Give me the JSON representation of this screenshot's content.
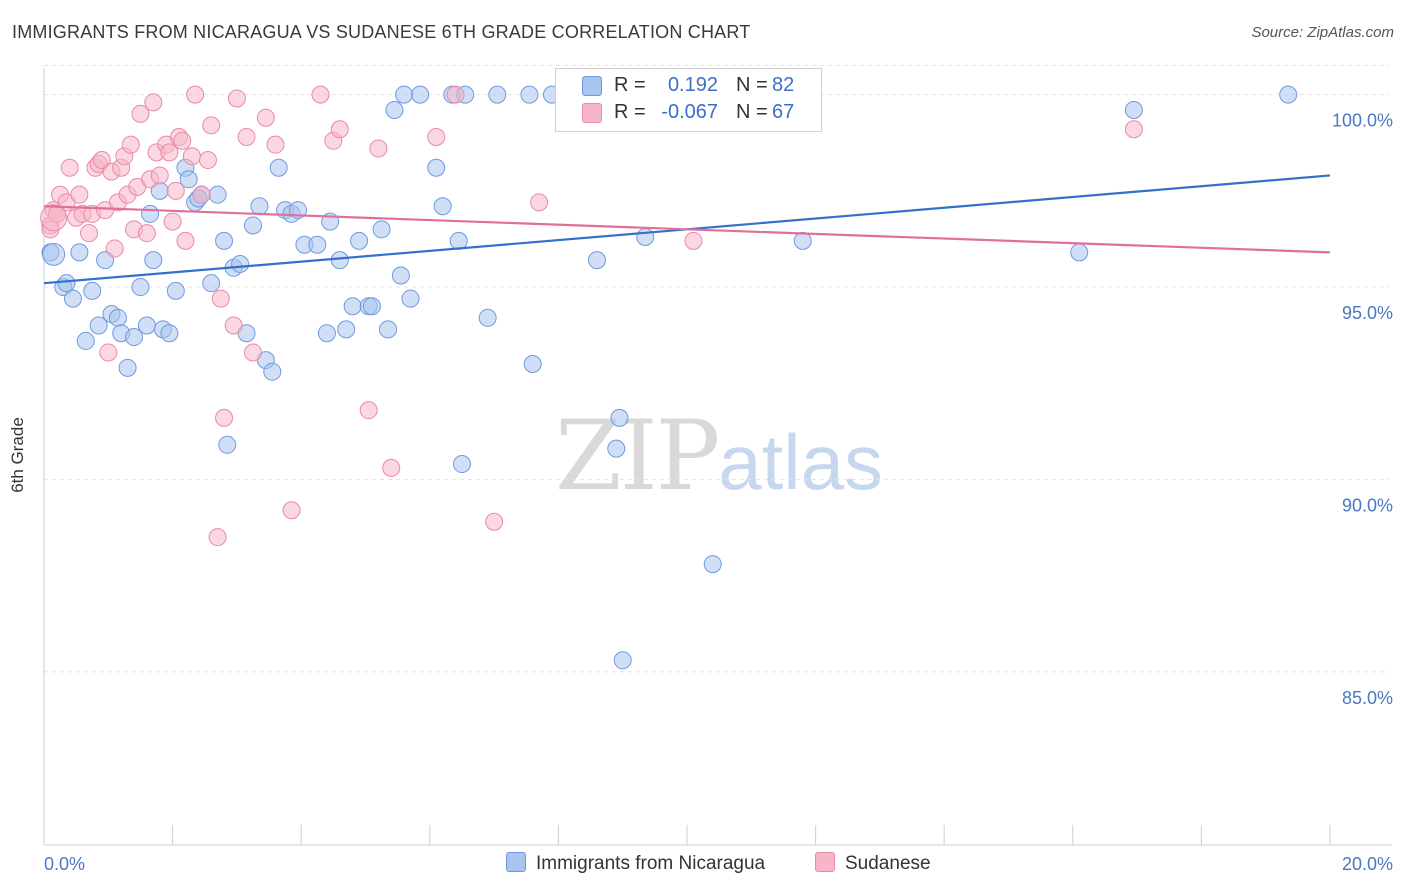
{
  "title": "IMMIGRANTS FROM NICARAGUA VS SUDANESE 6TH GRADE CORRELATION CHART",
  "source": "Source: ZipAtlas.com",
  "watermark": {
    "zip": "ZIP",
    "atlas": "atlas"
  },
  "legend": {
    "rows": [
      {
        "r_label": "R =",
        "r_value": "0.192",
        "n_label": "N =",
        "n_value": "82",
        "color": "#a9c4ee",
        "border": "#6f9ae0"
      },
      {
        "r_label": "R =",
        "r_value": "-0.067",
        "n_label": "N =",
        "n_value": "67",
        "color": "#f6b6c8",
        "border": "#e98aa7"
      }
    ]
  },
  "chart_data": {
    "type": "scatter",
    "title": "IMMIGRANTS FROM NICARAGUA VS SUDANESE 6TH GRADE CORRELATION CHART",
    "xlabel": "",
    "ylabel": "6th Grade",
    "xlim": [
      0,
      20
    ],
    "ylim": [
      80.5,
      100.9
    ],
    "x_tick_labels": [
      "0.0%",
      "20.0%"
    ],
    "y_ticks": [
      85,
      90,
      95,
      100
    ],
    "y_tick_labels": [
      "85.0%",
      "90.0%",
      "95.0%",
      "100.0%"
    ],
    "grid": true,
    "series": [
      {
        "name": "Immigrants from Nicaragua",
        "color": "#a9c4ee",
        "stroke": "#6f9ae0",
        "trend_color": "#3370cc",
        "trend": {
          "x": [
            0,
            20
          ],
          "y": [
            95.1,
            97.9
          ]
        },
        "points": [
          [
            0.1,
            95.9
          ],
          [
            0.3,
            95.0
          ],
          [
            0.35,
            95.1
          ],
          [
            0.45,
            94.7
          ],
          [
            0.55,
            95.9
          ],
          [
            0.65,
            93.6
          ],
          [
            0.75,
            94.9
          ],
          [
            0.85,
            94.0
          ],
          [
            0.95,
            95.7
          ],
          [
            1.05,
            94.3
          ],
          [
            1.15,
            94.2
          ],
          [
            1.2,
            93.8
          ],
          [
            1.3,
            92.9
          ],
          [
            1.4,
            93.7
          ],
          [
            1.5,
            95.0
          ],
          [
            1.6,
            94.0
          ],
          [
            1.7,
            95.7
          ],
          [
            1.8,
            97.5
          ],
          [
            1.85,
            93.9
          ],
          [
            1.95,
            93.8
          ],
          [
            2.05,
            94.9
          ],
          [
            2.2,
            98.1
          ],
          [
            2.25,
            97.8
          ],
          [
            2.35,
            97.2
          ],
          [
            2.45,
            97.4
          ],
          [
            2.6,
            95.1
          ],
          [
            2.7,
            97.4
          ],
          [
            2.8,
            96.2
          ],
          [
            2.85,
            90.9
          ],
          [
            2.95,
            95.5
          ],
          [
            3.05,
            95.6
          ],
          [
            3.15,
            93.8
          ],
          [
            3.25,
            96.6
          ],
          [
            3.35,
            97.1
          ],
          [
            3.45,
            93.1
          ],
          [
            3.55,
            92.8
          ],
          [
            3.65,
            98.1
          ],
          [
            3.75,
            97.0
          ],
          [
            3.85,
            96.9
          ],
          [
            3.95,
            97.0
          ],
          [
            4.05,
            96.1
          ],
          [
            4.25,
            96.1
          ],
          [
            4.4,
            93.8
          ],
          [
            4.45,
            96.7
          ],
          [
            4.6,
            95.7
          ],
          [
            4.7,
            93.9
          ],
          [
            4.8,
            94.5
          ],
          [
            4.9,
            96.2
          ],
          [
            5.05,
            94.5
          ],
          [
            5.1,
            94.5
          ],
          [
            5.25,
            96.5
          ],
          [
            5.35,
            93.9
          ],
          [
            5.45,
            99.6
          ],
          [
            5.55,
            95.3
          ],
          [
            5.6,
            100.0
          ],
          [
            5.7,
            94.7
          ],
          [
            5.85,
            100.0
          ],
          [
            6.1,
            98.1
          ],
          [
            6.2,
            97.1
          ],
          [
            6.35,
            100.0
          ],
          [
            6.45,
            96.2
          ],
          [
            6.5,
            90.4
          ],
          [
            6.55,
            100.0
          ],
          [
            6.9,
            94.2
          ],
          [
            7.05,
            100.0
          ],
          [
            7.55,
            100.0
          ],
          [
            7.6,
            93.0
          ],
          [
            7.9,
            100.0
          ],
          [
            8.1,
            100.0
          ],
          [
            8.25,
            100.0
          ],
          [
            8.6,
            95.7
          ],
          [
            8.9,
            90.8
          ],
          [
            8.95,
            91.6
          ],
          [
            9.35,
            96.3
          ],
          [
            10.4,
            87.8
          ],
          [
            9.0,
            85.3
          ],
          [
            11.8,
            96.2
          ],
          [
            16.1,
            95.9
          ],
          [
            16.95,
            99.6
          ],
          [
            19.35,
            100.0
          ],
          [
            1.65,
            96.9
          ],
          [
            2.4,
            97.3
          ]
        ],
        "sizes_note": ""
      },
      {
        "name": "Sudanese",
        "color": "#f6b6c8",
        "stroke": "#e98aa7",
        "trend_color": "#e07098",
        "trend": {
          "x": [
            0,
            20
          ],
          "y": [
            97.1,
            95.9
          ]
        },
        "points": [
          [
            0.1,
            96.6
          ],
          [
            0.15,
            97.0
          ],
          [
            0.2,
            96.9
          ],
          [
            0.25,
            97.4
          ],
          [
            0.35,
            97.2
          ],
          [
            0.4,
            98.1
          ],
          [
            0.5,
            96.8
          ],
          [
            0.55,
            97.4
          ],
          [
            0.6,
            96.9
          ],
          [
            0.7,
            96.4
          ],
          [
            0.75,
            96.9
          ],
          [
            0.8,
            98.1
          ],
          [
            0.85,
            98.2
          ],
          [
            0.9,
            98.3
          ],
          [
            0.95,
            97.0
          ],
          [
            1.0,
            93.3
          ],
          [
            1.05,
            98.0
          ],
          [
            1.1,
            96.0
          ],
          [
            1.15,
            97.2
          ],
          [
            1.2,
            98.1
          ],
          [
            1.25,
            98.4
          ],
          [
            1.3,
            97.4
          ],
          [
            1.35,
            98.7
          ],
          [
            1.4,
            96.5
          ],
          [
            1.45,
            97.6
          ],
          [
            1.5,
            99.5
          ],
          [
            1.6,
            96.4
          ],
          [
            1.65,
            97.8
          ],
          [
            1.7,
            99.8
          ],
          [
            1.75,
            98.5
          ],
          [
            1.8,
            97.9
          ],
          [
            1.9,
            98.7
          ],
          [
            1.95,
            98.5
          ],
          [
            2.0,
            96.7
          ],
          [
            2.05,
            97.5
          ],
          [
            2.1,
            98.9
          ],
          [
            2.15,
            98.8
          ],
          [
            2.2,
            96.2
          ],
          [
            2.3,
            98.4
          ],
          [
            2.35,
            100.0
          ],
          [
            2.45,
            97.4
          ],
          [
            2.55,
            98.3
          ],
          [
            2.6,
            99.2
          ],
          [
            2.75,
            94.7
          ],
          [
            2.8,
            91.6
          ],
          [
            2.7,
            88.5
          ],
          [
            2.95,
            94.0
          ],
          [
            3.0,
            99.9
          ],
          [
            3.15,
            98.9
          ],
          [
            3.25,
            93.3
          ],
          [
            3.45,
            99.4
          ],
          [
            3.6,
            98.7
          ],
          [
            3.85,
            89.2
          ],
          [
            4.3,
            100.0
          ],
          [
            4.5,
            98.8
          ],
          [
            4.6,
            99.1
          ],
          [
            5.05,
            91.8
          ],
          [
            5.2,
            98.6
          ],
          [
            5.4,
            90.3
          ],
          [
            6.1,
            98.9
          ],
          [
            6.4,
            100.0
          ],
          [
            7.0,
            88.9
          ],
          [
            7.7,
            97.2
          ],
          [
            10.1,
            96.2
          ],
          [
            16.95,
            99.1
          ],
          [
            0.2,
            96.9
          ],
          [
            0.1,
            96.5
          ]
        ]
      }
    ],
    "legend_placement": "top-center"
  },
  "bottom_legend": {
    "items": [
      {
        "label": "Immigrants from Nicaragua",
        "color": "#a9c4ee",
        "border": "#6f9ae0"
      },
      {
        "label": "Sudanese",
        "color": "#f6b6c8",
        "border": "#e98aa7"
      }
    ]
  }
}
